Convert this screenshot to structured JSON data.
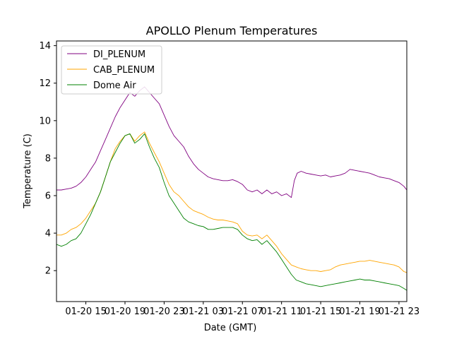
{
  "chart_data": {
    "type": "line",
    "title": "APOLLO Plenum Temperatures",
    "xlabel": "Date (GMT)",
    "ylabel": "Temperature (C)",
    "x_unit": "hours since 01-20 12:00 GMT",
    "xlim": [
      0,
      35.8
    ],
    "ylim": [
      0.35,
      14.25
    ],
    "xticks": [
      {
        "value": 3,
        "label": "01-20 15"
      },
      {
        "value": 7,
        "label": "01-20 19"
      },
      {
        "value": 11,
        "label": "01-20 23"
      },
      {
        "value": 15,
        "label": "01-21 03"
      },
      {
        "value": 19,
        "label": "01-21 07"
      },
      {
        "value": 23,
        "label": "01-21 11"
      },
      {
        "value": 27,
        "label": "01-21 15"
      },
      {
        "value": 31,
        "label": "01-21 19"
      },
      {
        "value": 35,
        "label": "01-21 23"
      }
    ],
    "yticks": [
      {
        "value": 2,
        "label": "2"
      },
      {
        "value": 4,
        "label": "4"
      },
      {
        "value": 6,
        "label": "6"
      },
      {
        "value": 8,
        "label": "8"
      },
      {
        "value": 10,
        "label": "10"
      },
      {
        "value": 12,
        "label": "12"
      },
      {
        "value": 14,
        "label": "14"
      }
    ],
    "grid": false,
    "legend_position": "top-left",
    "series": [
      {
        "name": "DI_PLENUM",
        "color": "#800080",
        "x": [
          0,
          0.5,
          1,
          1.5,
          2,
          2.5,
          3,
          3.5,
          4,
          4.5,
          5,
          5.5,
          6,
          6.5,
          7,
          7.5,
          8,
          8.5,
          9,
          9.5,
          10,
          10.5,
          11,
          11.5,
          12,
          12.5,
          13,
          13.5,
          14,
          14.5,
          15,
          15.5,
          16,
          16.5,
          17,
          17.5,
          18,
          18.5,
          19,
          19.5,
          20,
          20.5,
          21,
          21.5,
          22,
          22.5,
          23,
          23.5,
          24,
          24.3,
          24.6,
          25,
          25.5,
          26,
          26.5,
          27,
          27.5,
          28,
          28.5,
          29,
          29.5,
          30,
          30.5,
          31,
          31.5,
          32,
          32.5,
          33,
          33.5,
          34,
          34.5,
          35,
          35.5,
          35.8
        ],
        "values": [
          6.3,
          6.3,
          6.35,
          6.4,
          6.5,
          6.7,
          7.0,
          7.4,
          7.8,
          8.4,
          9.0,
          9.6,
          10.2,
          10.7,
          11.1,
          11.5,
          11.3,
          11.6,
          11.8,
          11.5,
          11.2,
          10.9,
          10.3,
          9.7,
          9.2,
          8.9,
          8.6,
          8.1,
          7.7,
          7.4,
          7.2,
          7.0,
          6.9,
          6.85,
          6.8,
          6.8,
          6.85,
          6.75,
          6.6,
          6.3,
          6.2,
          6.3,
          6.1,
          6.3,
          6.1,
          6.2,
          6.0,
          6.1,
          5.9,
          6.8,
          7.2,
          7.3,
          7.2,
          7.15,
          7.1,
          7.05,
          7.1,
          7.0,
          7.05,
          7.1,
          7.2,
          7.4,
          7.35,
          7.3,
          7.25,
          7.2,
          7.1,
          7.0,
          6.95,
          6.9,
          6.8,
          6.7,
          6.5,
          6.3
        ]
      },
      {
        "name": "CAB_PLENUM",
        "color": "#ffa500",
        "x": [
          0,
          0.5,
          1,
          1.5,
          2,
          2.5,
          3,
          3.5,
          4,
          4.5,
          5,
          5.5,
          6,
          6.5,
          7,
          7.5,
          8,
          8.5,
          9,
          9.5,
          10,
          10.5,
          11,
          11.5,
          12,
          12.5,
          13,
          13.5,
          14,
          14.5,
          15,
          15.5,
          16,
          16.5,
          17,
          17.5,
          18,
          18.5,
          19,
          19.5,
          20,
          20.5,
          21,
          21.5,
          22,
          22.5,
          23,
          23.5,
          24,
          24.5,
          25,
          25.5,
          26,
          26.5,
          27,
          27.5,
          28,
          28.5,
          29,
          29.5,
          30,
          30.5,
          31,
          31.5,
          32,
          32.5,
          33,
          33.5,
          34,
          34.5,
          35,
          35.5,
          35.8
        ],
        "values": [
          3.9,
          3.9,
          4.0,
          4.2,
          4.3,
          4.5,
          4.8,
          5.2,
          5.6,
          6.2,
          7.0,
          7.8,
          8.5,
          8.9,
          9.2,
          9.3,
          8.9,
          9.2,
          9.4,
          8.8,
          8.3,
          7.8,
          7.2,
          6.6,
          6.2,
          6.0,
          5.7,
          5.4,
          5.2,
          5.1,
          5.0,
          4.85,
          4.75,
          4.7,
          4.7,
          4.65,
          4.6,
          4.5,
          4.1,
          3.9,
          3.85,
          3.9,
          3.7,
          3.9,
          3.6,
          3.3,
          2.9,
          2.6,
          2.3,
          2.2,
          2.1,
          2.05,
          2.0,
          2.0,
          1.95,
          2.0,
          2.05,
          2.2,
          2.3,
          2.35,
          2.4,
          2.45,
          2.5,
          2.5,
          2.55,
          2.5,
          2.45,
          2.4,
          2.35,
          2.3,
          2.2,
          1.95,
          1.9
        ]
      },
      {
        "name": "Dome Air",
        "color": "#008000",
        "x": [
          0,
          0.5,
          1,
          1.5,
          2,
          2.5,
          3,
          3.5,
          4,
          4.5,
          5,
          5.5,
          6,
          6.5,
          7,
          7.5,
          8,
          8.5,
          9,
          9.5,
          10,
          10.5,
          11,
          11.5,
          12,
          12.5,
          13,
          13.5,
          14,
          14.5,
          15,
          15.5,
          16,
          16.5,
          17,
          17.5,
          18,
          18.5,
          19,
          19.5,
          20,
          20.5,
          21,
          21.5,
          22,
          22.5,
          23,
          23.5,
          24,
          24.5,
          25,
          25.5,
          26,
          26.5,
          27,
          27.5,
          28,
          28.5,
          29,
          29.5,
          30,
          30.5,
          31,
          31.5,
          32,
          32.5,
          33,
          33.5,
          34,
          34.5,
          35,
          35.5,
          35.8
        ],
        "values": [
          3.4,
          3.3,
          3.4,
          3.6,
          3.7,
          4.0,
          4.5,
          5.0,
          5.6,
          6.2,
          7.0,
          7.8,
          8.3,
          8.8,
          9.2,
          9.3,
          8.8,
          9.0,
          9.3,
          8.6,
          8.0,
          7.5,
          6.7,
          6.0,
          5.6,
          5.2,
          4.8,
          4.6,
          4.5,
          4.4,
          4.35,
          4.2,
          4.2,
          4.25,
          4.3,
          4.3,
          4.3,
          4.2,
          3.9,
          3.7,
          3.6,
          3.65,
          3.4,
          3.6,
          3.3,
          3.0,
          2.6,
          2.2,
          1.8,
          1.5,
          1.4,
          1.3,
          1.25,
          1.2,
          1.15,
          1.2,
          1.25,
          1.3,
          1.35,
          1.4,
          1.45,
          1.5,
          1.55,
          1.5,
          1.5,
          1.45,
          1.4,
          1.35,
          1.3,
          1.25,
          1.2,
          1.05,
          0.95
        ]
      }
    ]
  }
}
